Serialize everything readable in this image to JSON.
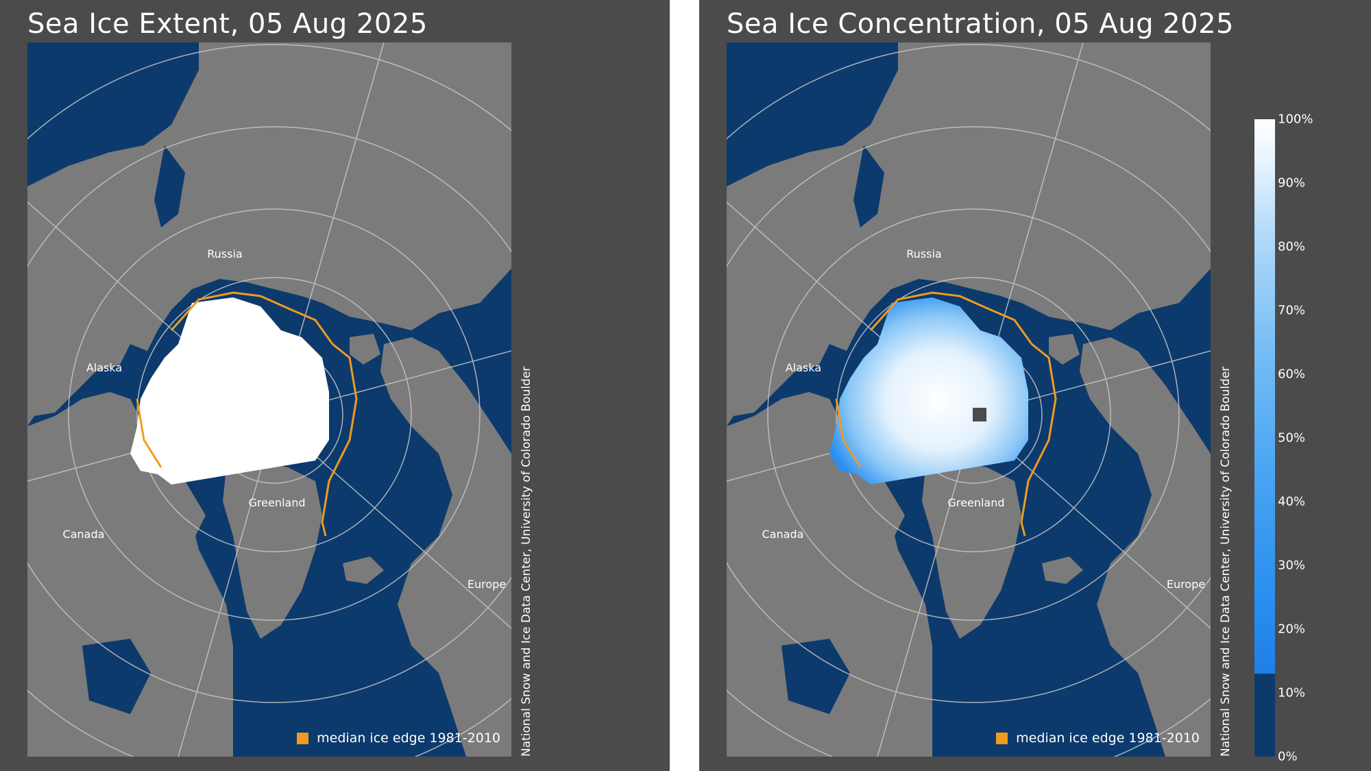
{
  "panels": [
    {
      "title": "Sea Ice Extent, 05 Aug 2025",
      "credit": "National Snow and Ice Data Center, University of Colorado Boulder",
      "legend": "median ice edge 1981-2010"
    },
    {
      "title": "Sea Ice Concentration, 05 Aug 2025",
      "credit": "National Snow and Ice Data Center, University of Colorado Boulder",
      "legend": "median ice edge 1981-2010"
    }
  ],
  "labels": {
    "russia": "Russia",
    "alaska": "Alaska",
    "canada": "Canada",
    "greenland": "Greenland",
    "europe": "Europe"
  },
  "colorbar": {
    "ticks": [
      "0%",
      "10%",
      "20%",
      "30%",
      "40%",
      "50%",
      "60%",
      "70%",
      "80%",
      "90%",
      "100%"
    ]
  },
  "colors": {
    "ocean": "#0c3a6c",
    "land": "#7b7b7b",
    "ice": "#ffffff",
    "median_edge": "#f29a1f",
    "background": "#4b4b4b"
  }
}
